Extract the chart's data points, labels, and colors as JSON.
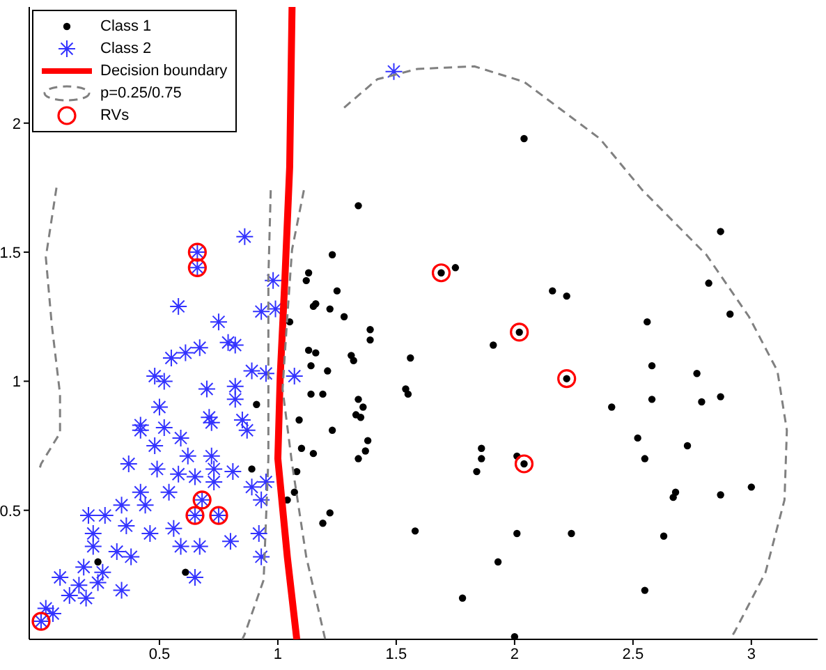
{
  "chart_data": {
    "type": "scatter",
    "xlim": [
      -0.05,
      3.28
    ],
    "ylim": [
      0,
      2.45
    ],
    "xticks": [
      0.5,
      1,
      1.5,
      2,
      2.5,
      3
    ],
    "yticks": [
      0.5,
      1,
      1.5,
      2
    ],
    "legend": "top left",
    "series": [
      {
        "name": "Class 1",
        "marker": "circle",
        "color": "#000000",
        "x": [
          2.04,
          1.34,
          1.23,
          1.13,
          1.12,
          1.25,
          1.75,
          1.69,
          2.02,
          1.91,
          1.16,
          1.15,
          1.22,
          1.28,
          1.39,
          1.39,
          1.13,
          1.16,
          1.14,
          1.21,
          1.31,
          1.32,
          1.56,
          1.14,
          1.19,
          1.34,
          1.36,
          1.33,
          1.35,
          1.54,
          1.55,
          1.09,
          1.23,
          1.38,
          1.05,
          0.91,
          1.1,
          1.15,
          1.37,
          1.34,
          1.08,
          1.07,
          1.22,
          1.19,
          1.58,
          1.86,
          1.86,
          1.84,
          2.01,
          2.04,
          2.01,
          1.93,
          1.78,
          2.0,
          1.04,
          2.87,
          2.82,
          2.91,
          2.16,
          2.22,
          2.22,
          2.56,
          2.58,
          2.77,
          2.41,
          2.58,
          2.79,
          2.87,
          2.52,
          2.73,
          2.55,
          2.24,
          2.68,
          2.67,
          2.87,
          3.0,
          2.63,
          2.55,
          0.61,
          0.24,
          0.89
        ],
        "values": [
          1.94,
          1.68,
          1.49,
          1.42,
          1.39,
          1.35,
          1.44,
          1.42,
          1.19,
          1.14,
          1.3,
          1.29,
          1.28,
          1.25,
          1.2,
          1.16,
          1.12,
          1.11,
          1.06,
          1.04,
          1.1,
          1.08,
          1.09,
          0.95,
          0.95,
          0.93,
          0.9,
          0.87,
          0.86,
          0.97,
          0.95,
          0.85,
          0.81,
          0.77,
          1.23,
          0.91,
          0.74,
          0.72,
          0.73,
          0.7,
          0.65,
          0.57,
          0.49,
          0.45,
          0.42,
          0.74,
          0.7,
          0.65,
          0.71,
          0.68,
          0.41,
          0.3,
          0.16,
          0.01,
          0.54,
          1.58,
          1.38,
          1.26,
          1.35,
          1.33,
          1.01,
          1.23,
          1.06,
          1.03,
          0.9,
          0.93,
          0.92,
          0.94,
          0.78,
          0.75,
          0.7,
          0.41,
          0.57,
          0.55,
          0.56,
          0.59,
          0.4,
          0.19,
          0.26,
          0.3,
          0.66
        ]
      },
      {
        "name": "Class 2",
        "marker": "cross",
        "color": "#3333ff",
        "x": [
          0.86,
          0.66,
          0.66,
          0.98,
          0.58,
          0.93,
          0.99,
          0.75,
          0.79,
          0.82,
          0.67,
          0.61,
          0.55,
          0.48,
          0.52,
          0.7,
          0.89,
          0.95,
          1.07,
          0.82,
          0.82,
          0.5,
          0.42,
          0.71,
          0.85,
          0.42,
          0.52,
          0.59,
          0.72,
          0.87,
          0.48,
          0.62,
          0.72,
          0.37,
          0.49,
          0.58,
          0.73,
          0.81,
          0.42,
          0.54,
          0.65,
          0.73,
          0.89,
          0.95,
          0.93,
          0.68,
          0.65,
          0.75,
          0.34,
          0.44,
          0.2,
          0.27,
          0.36,
          0.46,
          0.56,
          0.59,
          0.67,
          0.8,
          0.92,
          0.93,
          0.22,
          0.22,
          0.32,
          0.38,
          0.18,
          0.26,
          0.08,
          0.16,
          0.24,
          0.12,
          0.19,
          0.34,
          0.65,
          0.05,
          0.0,
          0.02,
          1.49
        ],
        "values": [
          1.56,
          1.5,
          1.44,
          1.39,
          1.29,
          1.27,
          1.28,
          1.23,
          1.15,
          1.14,
          1.13,
          1.11,
          1.09,
          1.02,
          1.0,
          0.97,
          1.04,
          1.03,
          1.02,
          0.98,
          0.93,
          0.9,
          0.83,
          0.86,
          0.85,
          0.81,
          0.82,
          0.78,
          0.84,
          0.81,
          0.75,
          0.71,
          0.71,
          0.68,
          0.66,
          0.64,
          0.66,
          0.65,
          0.57,
          0.57,
          0.63,
          0.61,
          0.59,
          0.61,
          0.54,
          0.54,
          0.48,
          0.48,
          0.52,
          0.52,
          0.48,
          0.48,
          0.44,
          0.41,
          0.43,
          0.36,
          0.36,
          0.38,
          0.41,
          0.32,
          0.41,
          0.36,
          0.34,
          0.32,
          0.28,
          0.26,
          0.24,
          0.21,
          0.22,
          0.17,
          0.16,
          0.19,
          0.24,
          0.1,
          0.07,
          0.12,
          2.2
        ]
      },
      {
        "name": "Decision boundary",
        "type": "line",
        "marker": "none",
        "line_style": "solid",
        "color": "#ff0000",
        "x": [
          1.06,
          1.05,
          1.03,
          1.01,
          1.0,
          1.04,
          1.08
        ],
        "values": [
          2.45,
          1.83,
          1.4,
          1.02,
          0.7,
          0.32,
          0.0
        ]
      },
      {
        "name": "p=0.25/0.75",
        "type": "line",
        "marker": "none",
        "line_style": "dashed",
        "color": "#808080",
        "x": [
          0.97,
          0.96,
          0.96,
          0.96,
          0.94,
          0.86,
          0.85
        ],
        "values": [
          1.74,
          1.4,
          1.02,
          0.7,
          0.23,
          0.02,
          0.0
        ]
      },
      {
        "type": "line",
        "marker": "none",
        "line_style": "dashed",
        "color": "#808080",
        "x": [
          1.11,
          1.06,
          1.04,
          1.02,
          1.06,
          1.12,
          1.2
        ],
        "values": [
          1.74,
          1.51,
          1.25,
          0.97,
          0.68,
          0.32,
          0.0
        ]
      },
      {
        "type": "line",
        "marker": "none",
        "line_style": "dashed",
        "color": "#808080",
        "x": [
          0.065,
          0.02,
          0.045,
          0.08,
          0.08,
          0.0,
          -0.01
        ],
        "values": [
          1.75,
          1.48,
          1.22,
          0.95,
          0.8,
          0.68,
          0.65
        ]
      },
      {
        "type": "line",
        "marker": "none",
        "line_style": "dashed",
        "color": "#808080",
        "x": [
          1.28,
          1.42,
          1.59,
          1.83,
          2.04,
          2.2,
          2.36,
          2.54,
          2.81,
          2.99,
          3.11,
          3.15,
          3.14,
          3.06,
          2.93,
          2.91
        ],
        "values": [
          2.06,
          2.17,
          2.21,
          2.22,
          2.16,
          2.05,
          1.94,
          1.74,
          1.49,
          1.25,
          1.04,
          0.81,
          0.54,
          0.26,
          0.03,
          0.0
        ]
      },
      {
        "name": "RVs",
        "marker": "circle",
        "color": "#ff0000",
        "x": [
          1.69,
          2.02,
          2.22,
          2.04,
          0.66,
          0.66,
          0.68,
          0.65,
          0.75,
          0.0
        ],
        "values": [
          1.42,
          1.19,
          1.01,
          0.68,
          1.5,
          1.44,
          0.54,
          0.48,
          0.48,
          0.07
        ]
      }
    ]
  }
}
